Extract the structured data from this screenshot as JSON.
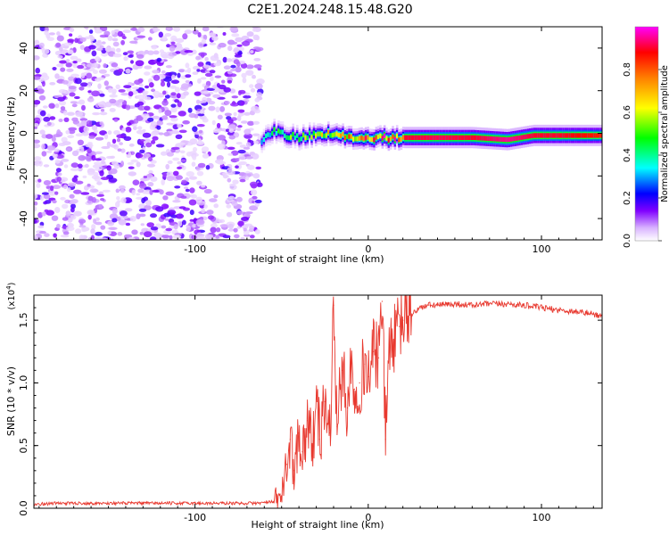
{
  "title": "C2E1.2024.248.15.48.G20",
  "chart_data": [
    {
      "type": "heatmap",
      "xlabel": "Height of straight line (km)",
      "ylabel": "Frequency (Hz)",
      "xlim": [
        -193,
        135
      ],
      "ylim": [
        -50,
        50
      ],
      "xticks": [
        -100,
        0,
        100
      ],
      "yticks": [
        -40,
        -20,
        0,
        20,
        40
      ],
      "colorbar": {
        "label": "Normalized spectral amplitude",
        "range": [
          0,
          1
        ],
        "ticks": [
          "0.0",
          "0.2",
          "0.4",
          "0.6",
          "0.8"
        ],
        "colors": [
          "#ffffff",
          "#d9b3ff",
          "#8000ff",
          "#0000ff",
          "#00ffff",
          "#00ff00",
          "#ffff00",
          "#ff8000",
          "#ff0000",
          "#ff00ff"
        ]
      },
      "noise_region_km": [
        -193,
        -62
      ],
      "signal_track": [
        {
          "x": -62,
          "freq": -4,
          "amp": 0.35
        },
        {
          "x": -55,
          "freq": 1,
          "amp": 0.45
        },
        {
          "x": -48,
          "freq": -1,
          "amp": 0.5
        },
        {
          "x": -40,
          "freq": -2,
          "amp": 0.55
        },
        {
          "x": -30,
          "freq": 0,
          "amp": 0.6
        },
        {
          "x": -20,
          "freq": -1,
          "amp": 0.65
        },
        {
          "x": -10,
          "freq": -2,
          "amp": 0.7
        },
        {
          "x": 0,
          "freq": -2,
          "amp": 0.8
        },
        {
          "x": 20,
          "freq": -2,
          "amp": 0.9
        },
        {
          "x": 40,
          "freq": -2,
          "amp": 0.92
        },
        {
          "x": 60,
          "freq": -2,
          "amp": 0.9
        },
        {
          "x": 80,
          "freq": -3,
          "amp": 0.95
        },
        {
          "x": 95,
          "freq": -1,
          "amp": 0.9
        },
        {
          "x": 110,
          "freq": -1,
          "amp": 0.9
        },
        {
          "x": 135,
          "freq": -1,
          "amp": 0.85
        }
      ]
    },
    {
      "type": "line",
      "xlabel": "Height of straight line (km)",
      "ylabel": "SNR (10 * v/v)",
      "yscale_label": "(x10",
      "yscale_exp": "4",
      "xlim": [
        -193,
        135
      ],
      "ylim": [
        0,
        1.7
      ],
      "xticks": [
        -100,
        0,
        100
      ],
      "yticks": [
        "0.0",
        "0.5",
        "1.0",
        "1.5"
      ],
      "color": "#e8392f",
      "series": [
        {
          "x": [
            -193,
            -180,
            -160,
            -140,
            -120,
            -100,
            -80,
            -65,
            -55,
            -50,
            -47,
            -45,
            -43,
            -40,
            -38,
            -35,
            -32,
            -30,
            -28,
            -25,
            -22,
            -20,
            -18,
            -15,
            -12,
            -10,
            -8,
            -5,
            -2,
            0,
            3,
            6,
            8,
            10,
            12,
            15,
            18,
            20,
            25,
            30,
            35,
            40,
            50,
            60,
            70,
            80,
            90,
            100,
            110,
            120,
            130,
            135
          ],
          "y": [
            0.03,
            0.04,
            0.04,
            0.04,
            0.04,
            0.04,
            0.04,
            0.04,
            0.05,
            0.1,
            0.35,
            0.55,
            0.3,
            0.6,
            0.45,
            0.7,
            0.5,
            0.9,
            0.55,
            0.85,
            0.6,
            1.62,
            0.65,
            1.1,
            0.8,
            1.15,
            0.95,
            1.0,
            1.15,
            1.05,
            1.25,
            1.2,
            1.65,
            0.55,
            1.3,
            1.35,
            1.45,
            1.5,
            1.55,
            1.6,
            1.62,
            1.62,
            1.63,
            1.62,
            1.63,
            1.63,
            1.62,
            1.6,
            1.58,
            1.57,
            1.55,
            1.53
          ]
        }
      ]
    }
  ]
}
